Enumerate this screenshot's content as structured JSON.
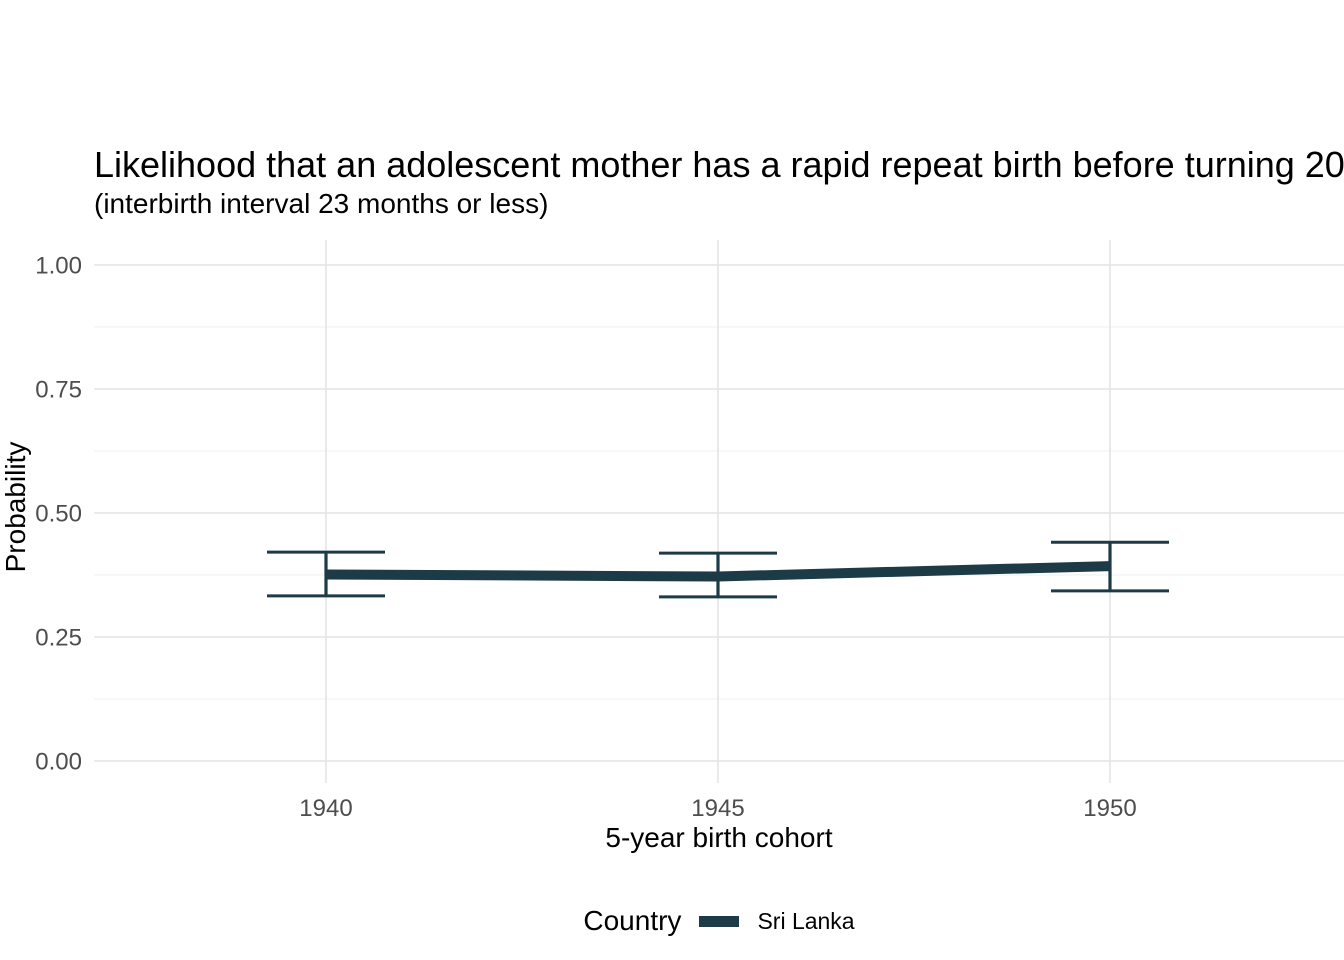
{
  "page": {
    "background": "#ffffff"
  },
  "chart_data": {
    "type": "line",
    "title": "Likelihood that an adolescent mother has a rapid repeat birth before turning 20",
    "subtitle": "(interbirth interval 23 months or less)",
    "xlabel": "5-year birth cohort",
    "ylabel": "Probability",
    "x": [
      1940,
      1945,
      1950
    ],
    "x_tick_labels": [
      "1940",
      "1945",
      "1950"
    ],
    "y_ticks": [
      0,
      0.25,
      0.5,
      0.75,
      1.0
    ],
    "y_tick_labels": [
      "0.00",
      "0.25",
      "0.50",
      "0.75",
      "1.00"
    ],
    "y_minor_ticks": [
      0.125,
      0.375,
      0.625,
      0.875
    ],
    "ylim": [
      -0.05,
      1.05
    ],
    "grid": {
      "show": true,
      "major_color": "#e4e4e4",
      "minor_color": "#efefef"
    },
    "series": [
      {
        "name": "Sri Lanka",
        "color": "#1c3b47",
        "values": [
          0.376,
          0.372,
          0.393
        ],
        "ci_low": [
          0.333,
          0.331,
          0.343
        ],
        "ci_high": [
          0.421,
          0.419,
          0.441
        ]
      }
    ],
    "legend": {
      "title": "Country",
      "position": "bottom"
    },
    "text_colors": {
      "title": "#000000",
      "axis_text": "#4d4d4d"
    }
  }
}
